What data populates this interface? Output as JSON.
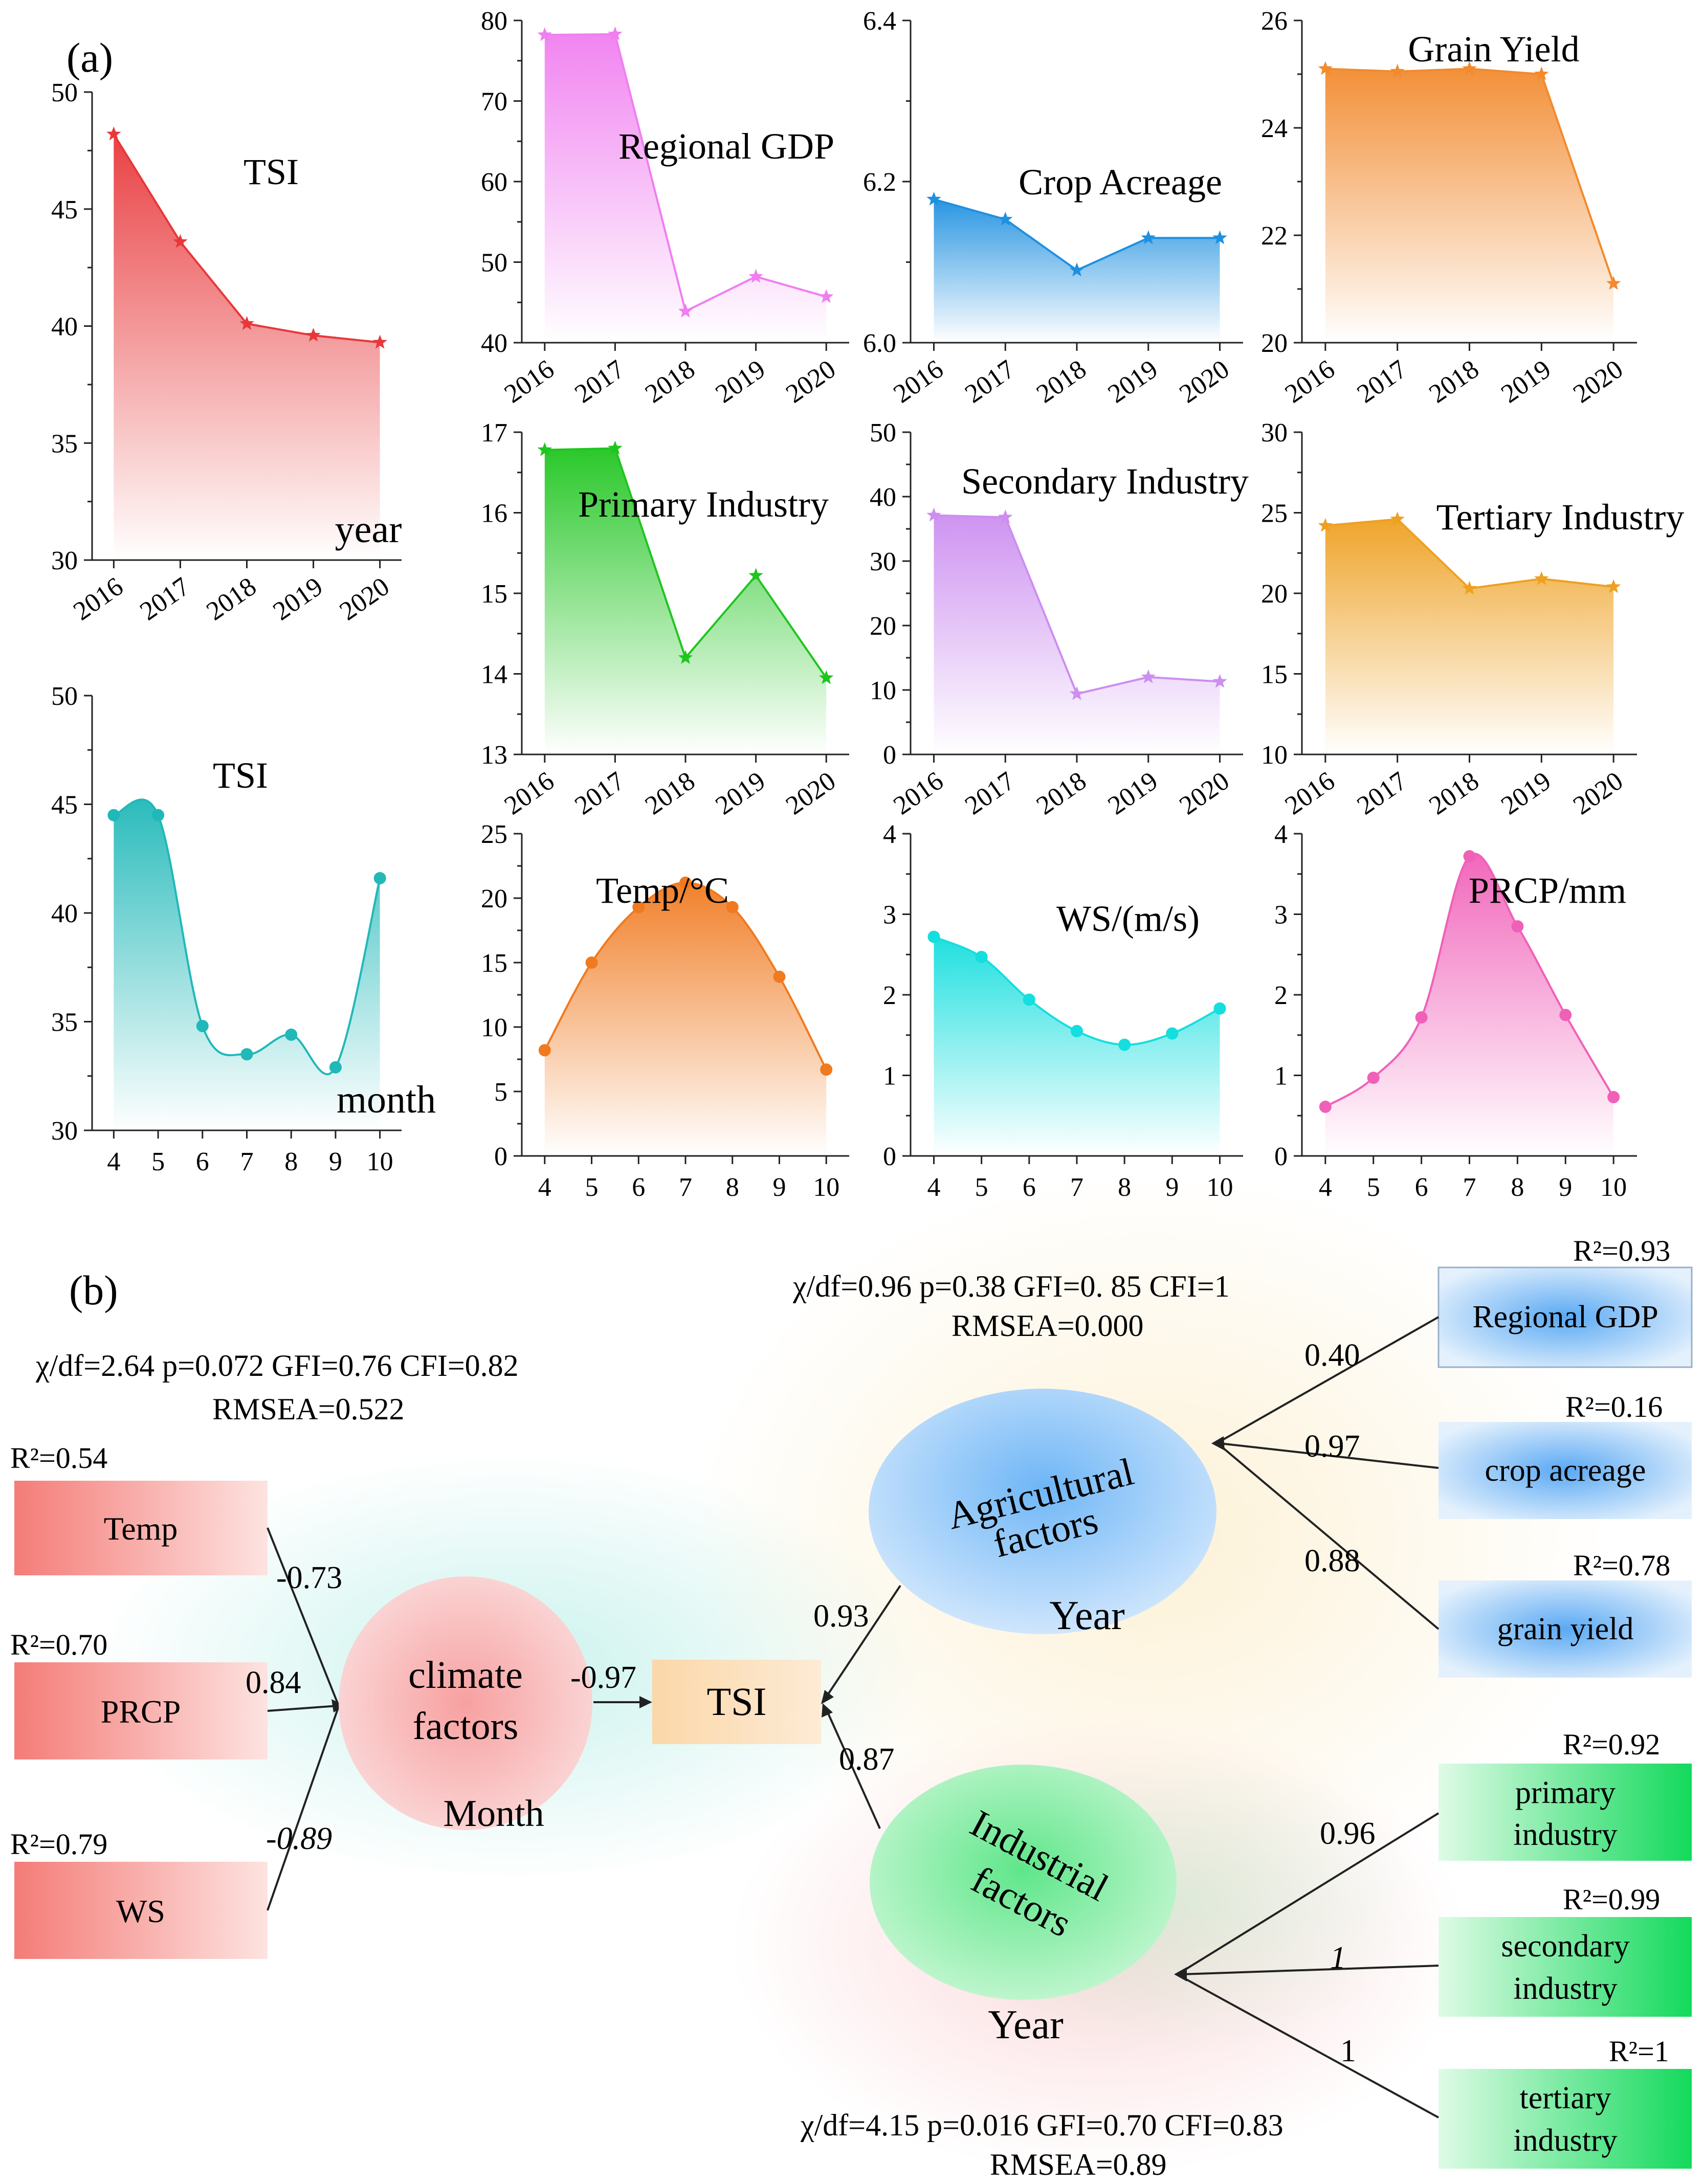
{
  "panel_a_label": "(a)",
  "panel_b_label": "(b)",
  "colors": {
    "tsi_year": "#e8373a",
    "gdp": "#f07ef0",
    "crop": "#1e90e0",
    "grain": "#f28a2e",
    "primary": "#1fc51f",
    "secondary": "#cc8ef0",
    "tertiary": "#eea020",
    "tsi_month": "#20b8b8",
    "temp": "#f07a20",
    "ws": "#14dede",
    "prcp": "#f060b8"
  },
  "chart_data": [
    {
      "id": "tsi_year",
      "type": "area",
      "title": "TSI",
      "xlabel": "year",
      "x": [
        "2016",
        "2017",
        "2018",
        "2019",
        "2020"
      ],
      "values": [
        48.2,
        43.6,
        40.1,
        39.6,
        39.3
      ],
      "ylim": [
        30,
        50
      ],
      "yticks": [
        30,
        35,
        40,
        45,
        50
      ],
      "marker": "star",
      "smooth": false
    },
    {
      "id": "gdp",
      "type": "area",
      "title": "Regional GDP",
      "xlabel": "",
      "x": [
        "2016",
        "2017",
        "2018",
        "2019",
        "2020"
      ],
      "values": [
        78.2,
        78.3,
        43.9,
        48.2,
        45.7
      ],
      "ylim": [
        40,
        80
      ],
      "yticks": [
        40,
        50,
        60,
        70,
        80
      ],
      "marker": "star",
      "smooth": false
    },
    {
      "id": "crop",
      "type": "area",
      "title": "Crop Acreage",
      "xlabel": "",
      "x": [
        "2016",
        "2017",
        "2018",
        "2019",
        "2020"
      ],
      "values": [
        6.178,
        6.153,
        6.09,
        6.13,
        6.13
      ],
      "ylim": [
        6.0,
        6.4
      ],
      "yticks": [
        "6.0",
        "6.2",
        "6.4"
      ],
      "marker": "star",
      "smooth": false
    },
    {
      "id": "grain",
      "type": "area",
      "title": "Grain Yield",
      "xlabel": "",
      "x": [
        "2016",
        "2017",
        "2018",
        "2019",
        "2020"
      ],
      "values": [
        25.1,
        25.05,
        25.1,
        25.0,
        21.1
      ],
      "ylim": [
        20,
        26
      ],
      "yticks": [
        20,
        22,
        24,
        26
      ],
      "marker": "star",
      "smooth": false
    },
    {
      "id": "primary",
      "type": "area",
      "title": "Primary Industry",
      "xlabel": "",
      "x": [
        "2016",
        "2017",
        "2018",
        "2019",
        "2020"
      ],
      "values": [
        16.78,
        16.8,
        14.2,
        15.22,
        13.95
      ],
      "ylim": [
        13,
        17
      ],
      "yticks": [
        13,
        14,
        15,
        16,
        17
      ],
      "marker": "star",
      "smooth": false
    },
    {
      "id": "secondary",
      "type": "area",
      "title": "Secondary Industry",
      "xlabel": "",
      "x": [
        "2016",
        "2017",
        "2018",
        "2019",
        "2020"
      ],
      "values": [
        37.1,
        36.8,
        9.4,
        12.0,
        11.3
      ],
      "ylim": [
        0,
        50
      ],
      "yticks": [
        0,
        10,
        20,
        30,
        40,
        50
      ],
      "marker": "star",
      "smooth": false
    },
    {
      "id": "tertiary",
      "type": "area",
      "title": "Tertiary Industry",
      "xlabel": "",
      "x": [
        "2016",
        "2017",
        "2018",
        "2019",
        "2020"
      ],
      "values": [
        24.2,
        24.6,
        20.3,
        20.9,
        20.4
      ],
      "ylim": [
        10,
        30
      ],
      "yticks": [
        10,
        15,
        20,
        25,
        30
      ],
      "marker": "star",
      "smooth": false
    },
    {
      "id": "tsi_month",
      "type": "area",
      "title": "TSI",
      "xlabel": "month",
      "x": [
        "4",
        "5",
        "6",
        "7",
        "8",
        "9",
        "10"
      ],
      "values": [
        44.5,
        44.5,
        34.8,
        33.5,
        34.4,
        32.9,
        41.6
      ],
      "ylim": [
        30,
        50
      ],
      "yticks": [
        30,
        35,
        40,
        45,
        50
      ],
      "marker": "circle",
      "smooth": true
    },
    {
      "id": "temp",
      "type": "area",
      "title": "Temp/°C",
      "xlabel": "",
      "x": [
        "4",
        "5",
        "6",
        "7",
        "8",
        "9",
        "10"
      ],
      "values": [
        8.2,
        15.0,
        19.3,
        21.2,
        19.3,
        13.9,
        6.7
      ],
      "ylim": [
        0,
        25
      ],
      "yticks": [
        0,
        5,
        10,
        15,
        20,
        25
      ],
      "marker": "circle",
      "smooth": true
    },
    {
      "id": "ws",
      "type": "area",
      "title": "WS/(m/s)",
      "xlabel": "",
      "x": [
        "4",
        "5",
        "6",
        "7",
        "8",
        "9",
        "10"
      ],
      "values": [
        2.72,
        2.47,
        1.94,
        1.55,
        1.38,
        1.52,
        1.83
      ],
      "ylim": [
        0,
        4
      ],
      "yticks": [
        0,
        1,
        2,
        3,
        4
      ],
      "marker": "circle",
      "smooth": true
    },
    {
      "id": "prcp",
      "type": "area",
      "title": "PRCP/mm",
      "xlabel": "",
      "x": [
        "4",
        "5",
        "6",
        "7",
        "8",
        "9",
        "10"
      ],
      "values": [
        0.61,
        0.97,
        1.72,
        3.72,
        2.85,
        1.75,
        0.73
      ],
      "ylim": [
        0,
        4
      ],
      "yticks": [
        0,
        1,
        2,
        3,
        4
      ],
      "marker": "circle",
      "smooth": true
    }
  ],
  "sem": {
    "climate": {
      "fit_line1": "χ/df=2.64  p=0.072 GFI=0.76 CFI=0.82",
      "fit_line2": "RMSEA=0.522",
      "latent_line1": "climate",
      "latent_line2": "factors",
      "latent_sub": "Month",
      "observed": [
        {
          "label": "Temp",
          "r2": "R²=0.54",
          "coef": "-0.73",
          "italic": false
        },
        {
          "label": "PRCP",
          "r2": "R²=0.70",
          "coef": "0.84",
          "italic": false
        },
        {
          "label": "WS",
          "r2": "R²=0.79",
          "coef": "-0.89",
          "italic": true
        }
      ],
      "path_to_tsi": "-0.97"
    },
    "tsi_label": "TSI",
    "agricultural": {
      "fit_line1": "χ/df=0.96  p=0.38  GFI=0. 85  CFI=1",
      "fit_line2": "RMSEA=0.000",
      "latent_line1": "Agricultural",
      "latent_line2": "factors",
      "latent_sub": "Year",
      "path_to_tsi": "0.93",
      "observed": [
        {
          "label": "Regional GDP",
          "r2": "R²=0.93",
          "coef": "0.40"
        },
        {
          "label": "crop acreage",
          "r2": "R²=0.16",
          "coef": "0.97"
        },
        {
          "label": "grain yield",
          "r2": "R²=0.78",
          "coef": "0.88"
        }
      ]
    },
    "industrial": {
      "fit_line1": "χ/df=4.15  p=0.016  GFI=0.70 CFI=0.83",
      "fit_line2": "RMSEA=0.89",
      "latent_line1": "Industrial",
      "latent_line2": "factors",
      "latent_sub": "Year",
      "path_to_tsi": "0.87",
      "observed": [
        {
          "label_line1": "primary",
          "label_line2": "industry",
          "r2": "R²=0.92",
          "coef": "0.96",
          "italic": false
        },
        {
          "label_line1": "secondary",
          "label_line2": "industry",
          "r2": "R²=0.99",
          "coef": "1",
          "italic": true
        },
        {
          "label_line1": "tertiary",
          "label_line2": "industry",
          "r2": "R²=1",
          "coef": "1",
          "italic": false
        }
      ]
    }
  }
}
